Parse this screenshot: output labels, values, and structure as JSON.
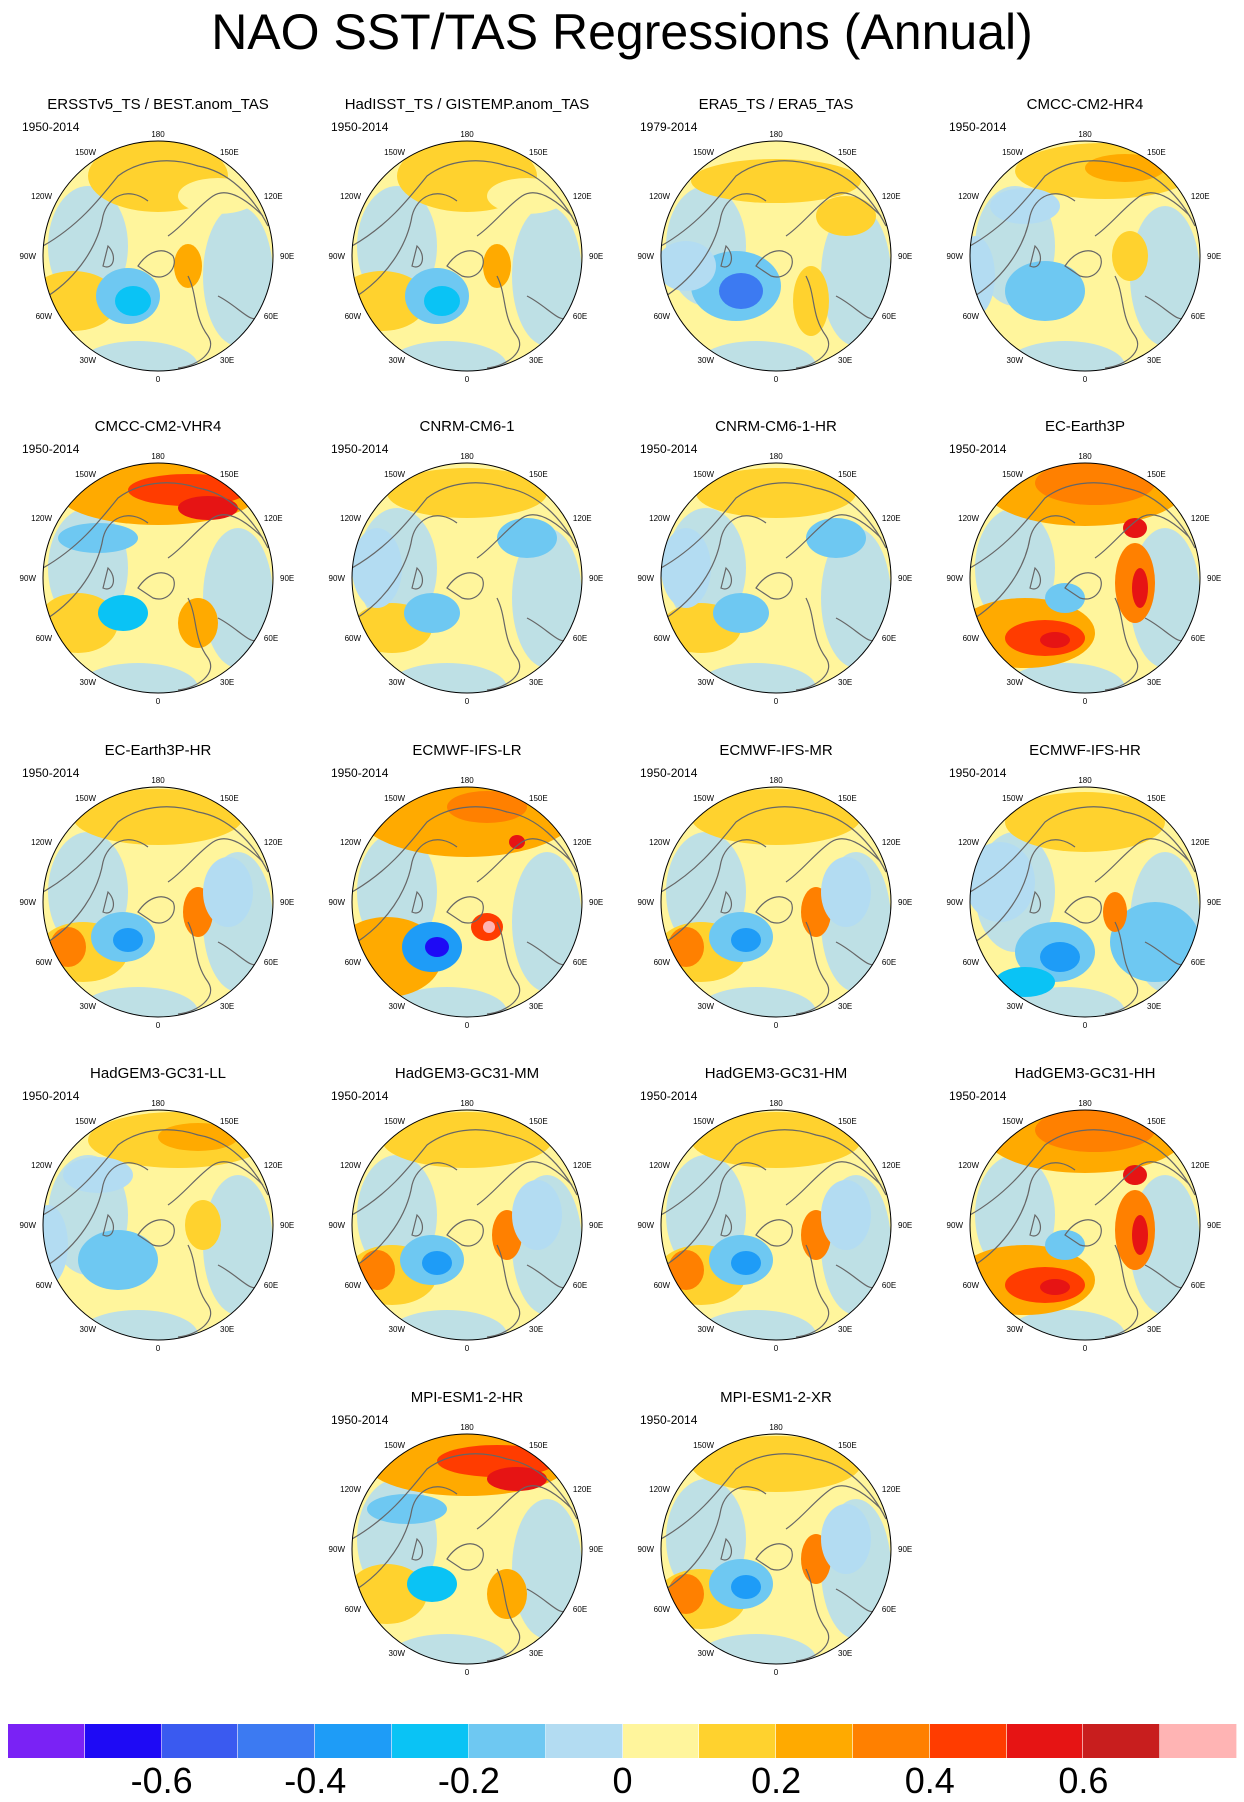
{
  "title": "NAO SST/TAS Regressions (Annual)",
  "lon_labels": {
    "top": "180",
    "bottom": "0",
    "left": [
      "150W",
      "120W",
      "90W",
      "60W",
      "30W"
    ],
    "right": [
      "150E",
      "120E",
      "90E",
      "60E",
      "30E"
    ]
  },
  "panels": [
    {
      "title": "ERSSTv5_TS / BEST.anom_TAS",
      "period": "1950-2014",
      "pattern": "obs"
    },
    {
      "title": "HadISST_TS / GISTEMP.anom_TAS",
      "period": "1950-2014",
      "pattern": "obs"
    },
    {
      "title": "ERA5_TS / ERA5_TAS",
      "period": "1979-2014",
      "pattern": "reanalysis"
    },
    {
      "title": "CMCC-CM2-HR4",
      "period": "1950-2014",
      "pattern": "pacific-moderate"
    },
    {
      "title": "CMCC-CM2-VHR4",
      "period": "1950-2014",
      "pattern": "pacific-strong"
    },
    {
      "title": "CNRM-CM6-1",
      "period": "1950-2014",
      "pattern": "weak"
    },
    {
      "title": "CNRM-CM6-1-HR",
      "period": "1950-2014",
      "pattern": "weak"
    },
    {
      "title": "EC-Earth3P",
      "period": "1950-2014",
      "pattern": "strong-warm"
    },
    {
      "title": "EC-Earth3P-HR",
      "period": "1950-2014",
      "pattern": "moderate"
    },
    {
      "title": "ECMWF-IFS-LR",
      "period": "1950-2014",
      "pattern": "strong-dipole"
    },
    {
      "title": "ECMWF-IFS-MR",
      "period": "1950-2014",
      "pattern": "moderate"
    },
    {
      "title": "ECMWF-IFS-HR",
      "period": "1950-2014",
      "pattern": "cool"
    },
    {
      "title": "HadGEM3-GC31-LL",
      "period": "1950-2014",
      "pattern": "pacific-moderate"
    },
    {
      "title": "HadGEM3-GC31-MM",
      "period": "1950-2014",
      "pattern": "moderate"
    },
    {
      "title": "HadGEM3-GC31-HM",
      "period": "1950-2014",
      "pattern": "moderate"
    },
    {
      "title": "HadGEM3-GC31-HH",
      "period": "1950-2014",
      "pattern": "strong-warm"
    },
    {
      "title": "MPI-ESM1-2-HR",
      "period": "1950-2014",
      "pattern": "pacific-strong"
    },
    {
      "title": "MPI-ESM1-2-XR",
      "period": "1950-2014",
      "pattern": "moderate"
    }
  ],
  "colorbar": {
    "colors": [
      "#7a22f5",
      "#1e0af5",
      "#3a5af0",
      "#3c7af2",
      "#1e9cf7",
      "#0ac3f5",
      "#6ec8f2",
      "#b3dcf2",
      "#fff59c",
      "#ffd22e",
      "#ffaa00",
      "#ff8000",
      "#ff3c00",
      "#e61414",
      "#c81e1e",
      "#ffb4b4"
    ],
    "labels": [
      "-0.6",
      "-0.4",
      "-0.2",
      "0",
      "0.2",
      "0.4",
      "0.6"
    ]
  }
}
